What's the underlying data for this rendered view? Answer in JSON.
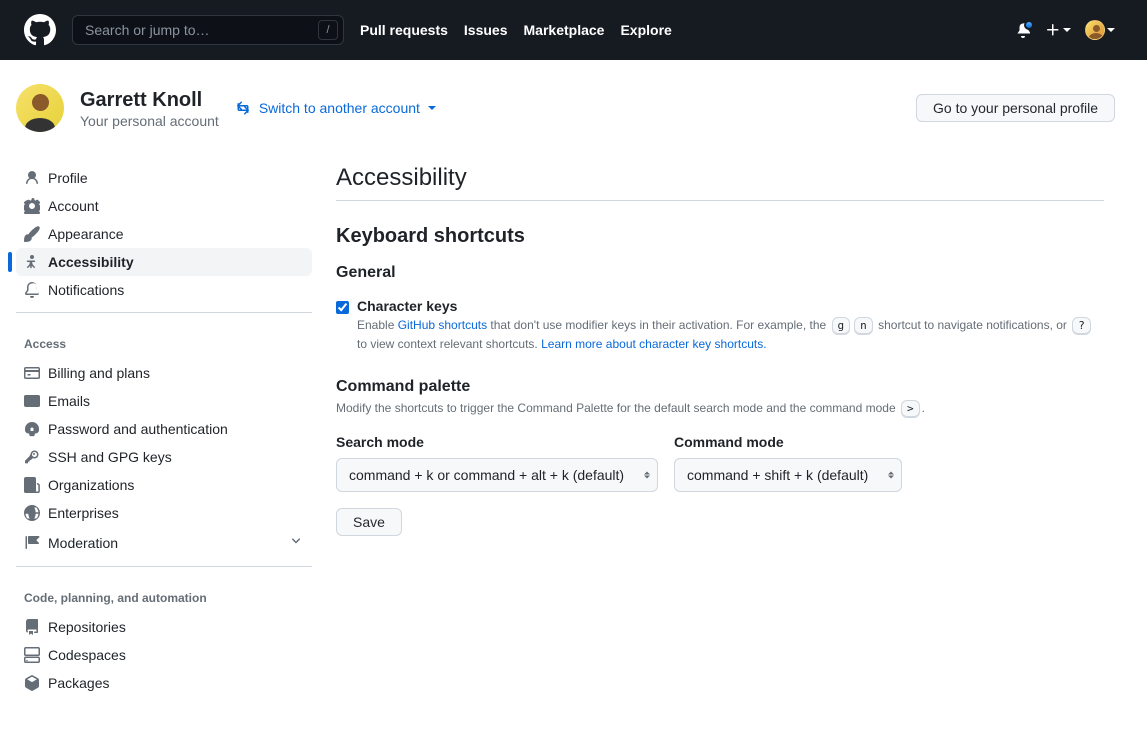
{
  "header": {
    "search_placeholder": "Search or jump to…",
    "search_key": "/",
    "nav": [
      {
        "label": "Pull requests"
      },
      {
        "label": "Issues"
      },
      {
        "label": "Marketplace"
      },
      {
        "label": "Explore"
      }
    ]
  },
  "user": {
    "name": "Garrett Knoll",
    "subtitle": "Your personal account",
    "switch_label": "Switch to another account",
    "profile_btn": "Go to your personal profile"
  },
  "sidebar": {
    "group1": [
      {
        "label": "Profile",
        "icon": "person"
      },
      {
        "label": "Account",
        "icon": "gear"
      },
      {
        "label": "Appearance",
        "icon": "paintbrush"
      },
      {
        "label": "Accessibility",
        "icon": "accessibility",
        "active": true
      },
      {
        "label": "Notifications",
        "icon": "bell"
      }
    ],
    "access_heading": "Access",
    "group2": [
      {
        "label": "Billing and plans",
        "icon": "credit-card"
      },
      {
        "label": "Emails",
        "icon": "mail"
      },
      {
        "label": "Password and authentication",
        "icon": "shield-lock"
      },
      {
        "label": "SSH and GPG keys",
        "icon": "key"
      },
      {
        "label": "Organizations",
        "icon": "organization"
      },
      {
        "label": "Enterprises",
        "icon": "globe"
      },
      {
        "label": "Moderation",
        "icon": "report",
        "chevron": true
      }
    ],
    "code_heading": "Code, planning, and automation",
    "group3": [
      {
        "label": "Repositories",
        "icon": "repo"
      },
      {
        "label": "Codespaces",
        "icon": "codespaces"
      },
      {
        "label": "Packages",
        "icon": "package"
      }
    ]
  },
  "main": {
    "title": "Accessibility",
    "h2": "Keyboard shortcuts",
    "general_h": "General",
    "ck_label": "Character keys",
    "ck_checked": true,
    "ck_note_pre": "Enable ",
    "ck_link1": "GitHub shortcuts",
    "ck_note_mid": " that don't use modifier keys in their activation. For example, the ",
    "ck_kbd1": "g",
    "ck_kbd2": "n",
    "ck_note_mid2": " shortcut to navigate notifications, or ",
    "ck_kbd3": "?",
    "ck_note_mid3": " to view context relevant shortcuts. ",
    "ck_link2": "Learn more about character key shortcuts.",
    "cp_h": "Command palette",
    "cp_p_pre": "Modify the shortcuts to trigger the Command Palette for the default search mode and the command mode ",
    "cp_kbd": ">",
    "cp_p_post": ".",
    "search_mode_label": "Search mode",
    "search_mode_value": "command + k or command + alt + k (default)",
    "command_mode_label": "Command mode",
    "command_mode_value": "command + shift + k (default)",
    "save_btn": "Save"
  }
}
